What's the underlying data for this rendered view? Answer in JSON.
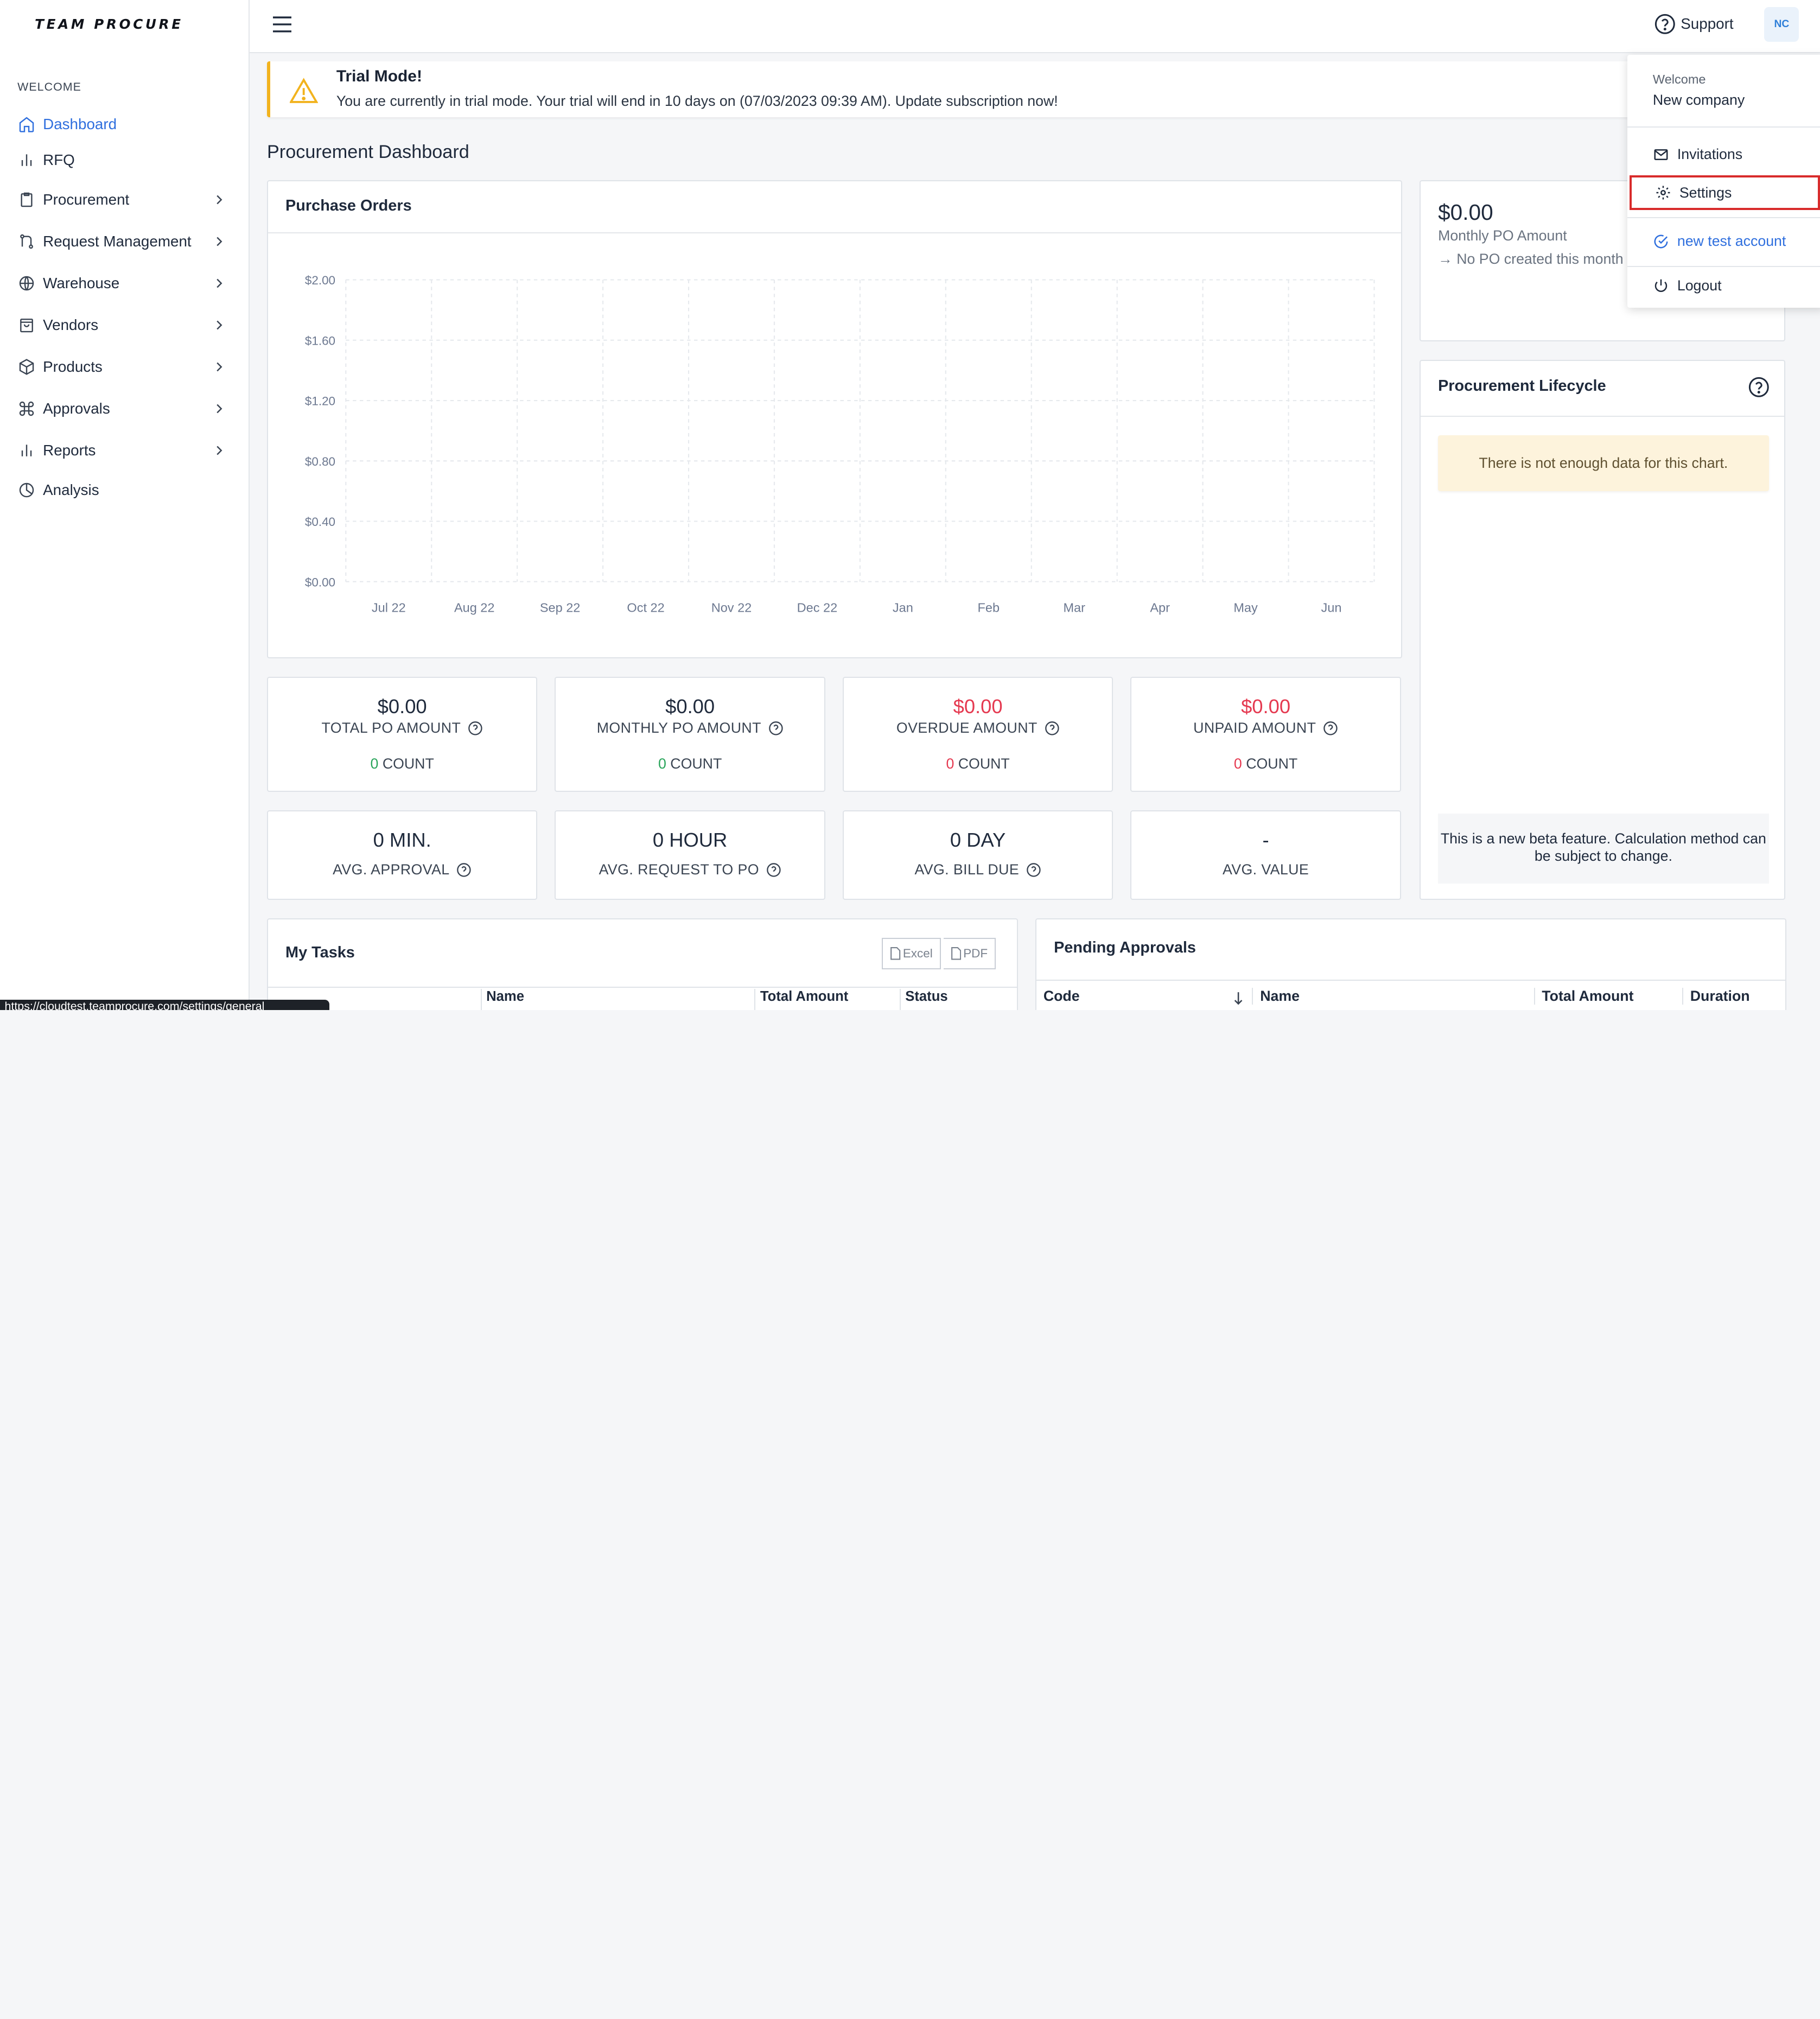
{
  "brand": {
    "logo_text": "TEAM PROCURE"
  },
  "sidebar": {
    "section_label": "WELCOME",
    "items": [
      {
        "label": "Dashboard",
        "icon": "home-icon",
        "active": true,
        "has_children": false
      },
      {
        "label": "RFQ",
        "icon": "bar-chart-icon",
        "has_children": false
      },
      {
        "label": "Procurement",
        "icon": "clipboard-icon",
        "has_children": true
      },
      {
        "label": "Request Management",
        "icon": "git-branch-icon",
        "has_children": true
      },
      {
        "label": "Warehouse",
        "icon": "globe-icon",
        "has_children": true
      },
      {
        "label": "Vendors",
        "icon": "shopping-bag-icon",
        "has_children": true
      },
      {
        "label": "Products",
        "icon": "box-icon",
        "has_children": true
      },
      {
        "label": "Approvals",
        "icon": "command-icon",
        "has_children": true
      },
      {
        "label": "Reports",
        "icon": "bar-chart-icon",
        "has_children": true
      },
      {
        "label": "Analysis",
        "icon": "pie-chart-icon",
        "has_children": false
      }
    ]
  },
  "topbar": {
    "support_label": "Support",
    "avatar_initials": "NC"
  },
  "trial": {
    "title": "Trial Mode!",
    "message": "You are currently in trial mode. Your trial will end in 10 days on (07/03/2023 09:39 AM). Update subscription now!"
  },
  "page": {
    "title": "Procurement Dashboard"
  },
  "purchase_orders": {
    "title": "Purchase Orders",
    "chart_data": {
      "type": "line",
      "categories": [
        "Jul 22",
        "Aug 22",
        "Sep 22",
        "Oct 22",
        "Nov 22",
        "Dec 22",
        "Jan",
        "Feb",
        "Mar",
        "Apr",
        "May",
        "Jun"
      ],
      "y_ticks": [
        "$2.00",
        "$1.60",
        "$1.20",
        "$0.80",
        "$0.40",
        "$0.00"
      ],
      "ylim": [
        0,
        2
      ],
      "series": [],
      "grid": true
    }
  },
  "monthly_card": {
    "value": "$0.00",
    "label": "Monthly PO Amount",
    "note": "→ No PO created this month"
  },
  "stats": [
    {
      "value": "$0.00",
      "label": "TOTAL PO AMOUNT",
      "count": "0",
      "count_label": "COUNT",
      "tone": "normal",
      "count_tone": "green"
    },
    {
      "value": "$0.00",
      "label": "MONTHLY PO AMOUNT",
      "count": "0",
      "count_label": "COUNT",
      "tone": "normal",
      "count_tone": "green"
    },
    {
      "value": "$0.00",
      "label": "OVERDUE AMOUNT",
      "count": "0",
      "count_label": "COUNT",
      "tone": "red",
      "count_tone": "red"
    },
    {
      "value": "$0.00",
      "label": "UNPAID AMOUNT",
      "count": "0",
      "count_label": "COUNT",
      "tone": "red",
      "count_tone": "red"
    }
  ],
  "stats2": [
    {
      "value": "0 MIN.",
      "label": "AVG. APPROVAL",
      "help": true
    },
    {
      "value": "0 HOUR",
      "label": "AVG. REQUEST TO PO",
      "help": true
    },
    {
      "value": "0 DAY",
      "label": "AVG. BILL DUE",
      "help": true
    },
    {
      "value": "-",
      "label": "AVG. VALUE",
      "help": false
    }
  ],
  "lifecycle": {
    "title": "Procurement Lifecycle",
    "notice": "There is not enough data for this chart.",
    "beta_note": "This is a new beta feature. Calculation method can be subject to change."
  },
  "tasks": {
    "title": "My Tasks",
    "excel_label": "Excel",
    "pdf_label": "PDF",
    "columns": [
      "",
      "Name",
      "Total Amount",
      "Status"
    ]
  },
  "approvals": {
    "title": "Pending Approvals",
    "columns": [
      "Code",
      "Name",
      "Total Amount",
      "Duration"
    ]
  },
  "dropdown": {
    "welcome_label": "Welcome",
    "company": "New company",
    "items": [
      {
        "label": "Invitations",
        "icon": "mail-icon"
      },
      {
        "label": "Settings",
        "icon": "gear-icon"
      },
      {
        "label": "new test account",
        "icon": "check-circle-icon"
      },
      {
        "label": "Logout",
        "icon": "power-icon"
      }
    ]
  },
  "status_bar": {
    "url": "https://cloudtest.teamprocure.com/settings/general"
  },
  "colors": {
    "accent": "#2f6fde",
    "warning": "#f2b31e",
    "danger": "#e53950",
    "success": "#2aa55b"
  }
}
